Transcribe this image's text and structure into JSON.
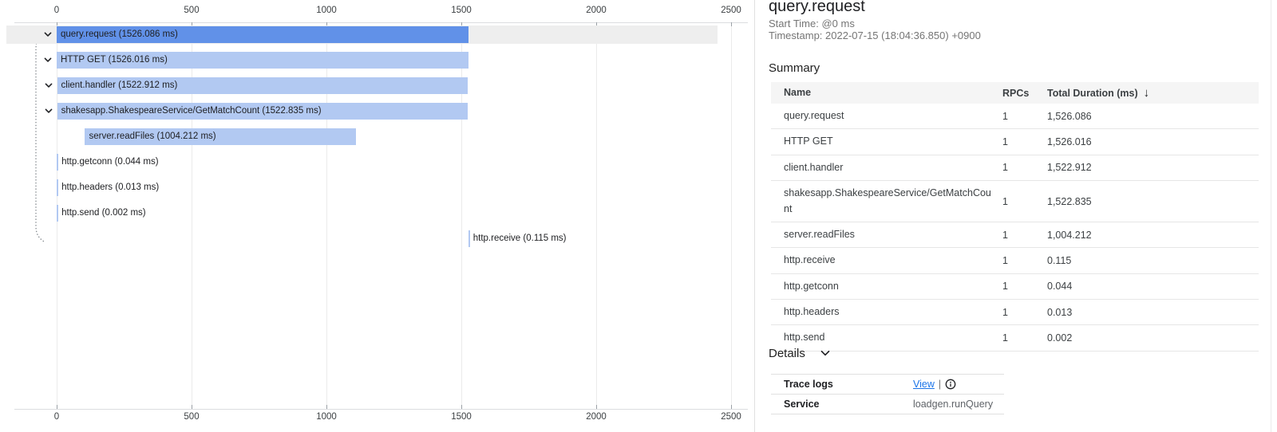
{
  "colors": {
    "selected_bar": "#6191E8",
    "bar": "#B2C9F2",
    "selected_row_bg": "#EEEEEE",
    "link": "#1A73E8"
  },
  "chart_data": {
    "type": "gantt",
    "title": "trace span waterfall",
    "unit": "ms",
    "x_ticks": [
      0,
      500,
      1000,
      1500,
      2000,
      2500
    ],
    "x_max": 2560,
    "grid": true,
    "spans": [
      {
        "name": "query.request",
        "label": "query.request (1526.086 ms)",
        "start_ms": 0,
        "duration_ms": 1526.086,
        "expandable": true,
        "selected": true
      },
      {
        "name": "HTTP GET",
        "label": "HTTP GET (1526.016 ms)",
        "start_ms": 0.05,
        "duration_ms": 1526.016,
        "expandable": true,
        "selected": false
      },
      {
        "name": "client.handler",
        "label": "client.handler (1522.912 ms)",
        "start_ms": 1.6,
        "duration_ms": 1522.912,
        "expandable": true,
        "selected": false
      },
      {
        "name": "shakesapp.ShakespeareService/GetMatchCount",
        "label": "shakesapp.ShakespeareService/GetMatchCount (1522.835 ms)",
        "start_ms": 1.7,
        "duration_ms": 1522.835,
        "expandable": true,
        "selected": false
      },
      {
        "name": "server.readFiles",
        "label": "server.readFiles (1004.212 ms)",
        "start_ms": 105,
        "duration_ms": 1004.212,
        "expandable": false,
        "selected": false
      },
      {
        "name": "http.getconn",
        "label": "http.getconn (0.044 ms)",
        "start_ms": 0.3,
        "duration_ms": 0.044,
        "expandable": false,
        "selected": false
      },
      {
        "name": "http.headers",
        "label": "http.headers (0.013 ms)",
        "start_ms": 0.4,
        "duration_ms": 0.013,
        "expandable": false,
        "selected": false
      },
      {
        "name": "http.send",
        "label": "http.send (0.002 ms)",
        "start_ms": 0.45,
        "duration_ms": 0.002,
        "expandable": false,
        "selected": false
      },
      {
        "name": "http.receive",
        "label": "http.receive (0.115 ms)",
        "start_ms": 1525.9,
        "duration_ms": 0.115,
        "expandable": false,
        "selected": false
      }
    ]
  },
  "panel": {
    "title": "query.request",
    "start_time": "Start Time: @0 ms",
    "timestamp": "Timestamp: 2022-07-15 (18:04:36.850) +0900",
    "summary_heading": "Summary",
    "summary_table": {
      "headers": {
        "name": "Name",
        "rpcs": "RPCs",
        "duration": "Total Duration (ms)"
      },
      "sort_icon": "↓",
      "rows": [
        {
          "name": "query.request",
          "rpcs": "1",
          "duration": "1,526.086"
        },
        {
          "name": "HTTP GET",
          "rpcs": "1",
          "duration": "1,526.016"
        },
        {
          "name": "client.handler",
          "rpcs": "1",
          "duration": "1,522.912"
        },
        {
          "name": "shakesapp.ShakespeareService/GetMatchCount",
          "rpcs": "1",
          "duration": "1,522.835"
        },
        {
          "name": "server.readFiles",
          "rpcs": "1",
          "duration": "1,004.212"
        },
        {
          "name": "http.receive",
          "rpcs": "1",
          "duration": "0.115"
        },
        {
          "name": "http.getconn",
          "rpcs": "1",
          "duration": "0.044"
        },
        {
          "name": "http.headers",
          "rpcs": "1",
          "duration": "0.013"
        },
        {
          "name": "http.send",
          "rpcs": "1",
          "duration": "0.002"
        }
      ]
    },
    "details_heading": "Details",
    "details_fields": {
      "trace_logs_label": "Trace logs",
      "trace_logs_link": "View",
      "trace_logs_separator": "|",
      "service_label": "Service",
      "service_value": "loadgen.runQuery"
    }
  }
}
